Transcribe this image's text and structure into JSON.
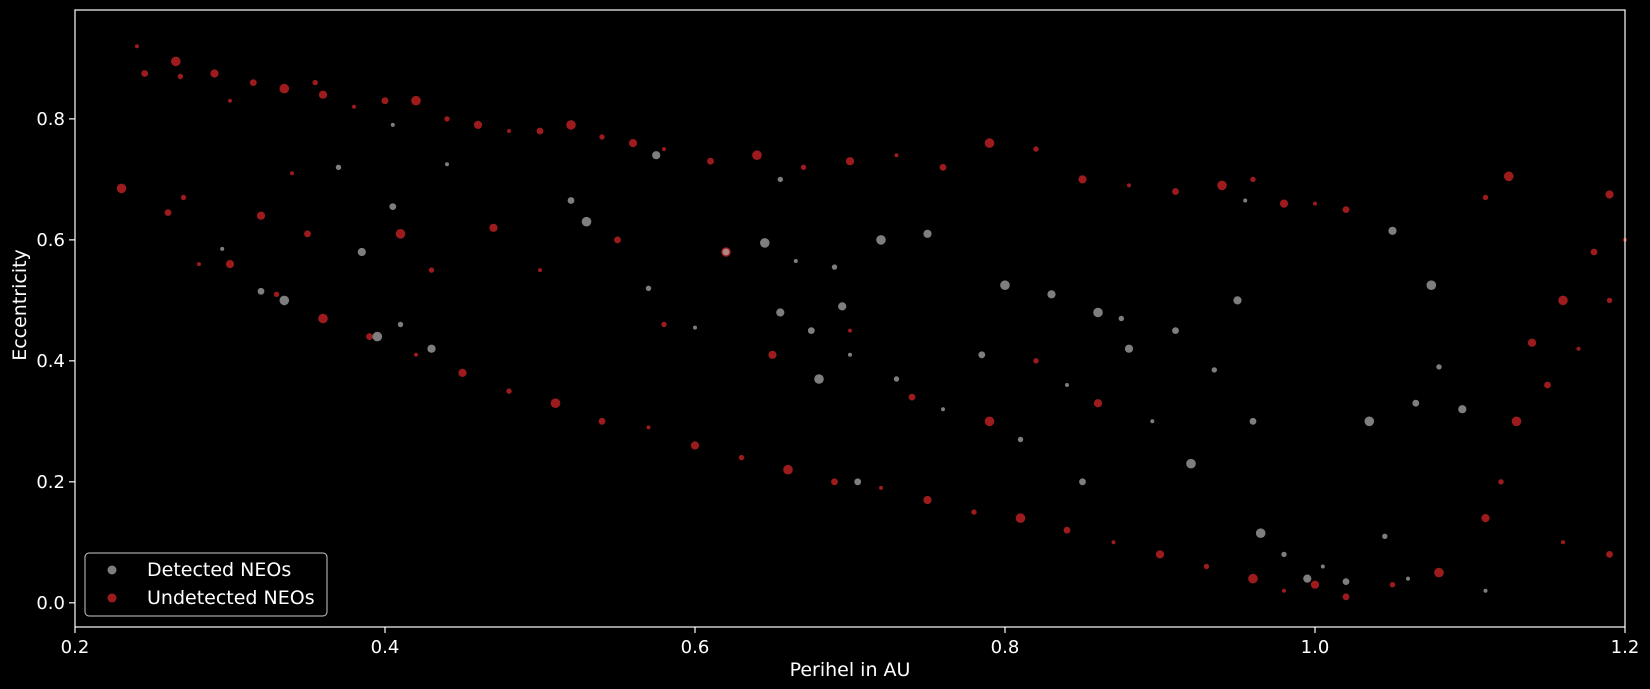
{
  "chart_data": {
    "type": "scatter",
    "title": "",
    "xlabel": "Perihel in AU",
    "ylabel": "Eccentricity",
    "xlim": [
      0.2,
      1.2
    ],
    "ylim": [
      -0.04,
      0.98
    ],
    "xticks": [
      0.2,
      0.4,
      0.6,
      0.8,
      1.0,
      1.2
    ],
    "xtick_labels": [
      "0.2",
      "0.4",
      "0.6",
      "0.8",
      "1.0",
      "1.2"
    ],
    "yticks": [
      0.0,
      0.2,
      0.4,
      0.6,
      0.8
    ],
    "ytick_labels": [
      "0.0",
      "0.2",
      "0.4",
      "0.6",
      "0.8"
    ],
    "grid": false,
    "background": "#000000",
    "legend": {
      "position": "lower-left"
    },
    "series": [
      {
        "name": "Undetected NEOs",
        "color": "#e0262a",
        "points": [
          [
            0.24,
            0.92
          ],
          [
            0.245,
            0.875
          ],
          [
            0.265,
            0.895
          ],
          [
            0.268,
            0.87
          ],
          [
            0.29,
            0.875
          ],
          [
            0.3,
            0.83
          ],
          [
            0.315,
            0.86
          ],
          [
            0.335,
            0.85
          ],
          [
            0.355,
            0.86
          ],
          [
            0.36,
            0.84
          ],
          [
            0.38,
            0.82
          ],
          [
            0.4,
            0.83
          ],
          [
            0.42,
            0.83
          ],
          [
            0.44,
            0.8
          ],
          [
            0.46,
            0.79
          ],
          [
            0.48,
            0.78
          ],
          [
            0.5,
            0.78
          ],
          [
            0.52,
            0.79
          ],
          [
            0.54,
            0.77
          ],
          [
            0.56,
            0.76
          ],
          [
            0.58,
            0.75
          ],
          [
            0.61,
            0.73
          ],
          [
            0.64,
            0.74
          ],
          [
            0.67,
            0.72
          ],
          [
            0.7,
            0.73
          ],
          [
            0.73,
            0.74
          ],
          [
            0.76,
            0.72
          ],
          [
            0.79,
            0.76
          ],
          [
            0.82,
            0.75
          ],
          [
            0.85,
            0.7
          ],
          [
            0.88,
            0.69
          ],
          [
            0.91,
            0.68
          ],
          [
            0.94,
            0.69
          ],
          [
            0.96,
            0.7
          ],
          [
            0.98,
            0.66
          ],
          [
            1.0,
            0.66
          ],
          [
            1.02,
            0.65
          ],
          [
            1.125,
            0.705
          ],
          [
            1.11,
            0.67
          ],
          [
            1.19,
            0.675
          ],
          [
            1.2,
            0.6
          ],
          [
            1.18,
            0.58
          ],
          [
            1.16,
            0.5
          ],
          [
            1.19,
            0.5
          ],
          [
            1.14,
            0.43
          ],
          [
            1.17,
            0.42
          ],
          [
            1.15,
            0.36
          ],
          [
            1.13,
            0.3
          ],
          [
            1.12,
            0.2
          ],
          [
            1.11,
            0.14
          ],
          [
            1.16,
            0.1
          ],
          [
            1.19,
            0.08
          ],
          [
            1.08,
            0.05
          ],
          [
            1.05,
            0.03
          ],
          [
            1.0,
            0.03
          ],
          [
            0.98,
            0.02
          ],
          [
            1.02,
            0.01
          ],
          [
            0.96,
            0.04
          ],
          [
            0.93,
            0.06
          ],
          [
            0.9,
            0.08
          ],
          [
            0.87,
            0.1
          ],
          [
            0.84,
            0.12
          ],
          [
            0.81,
            0.14
          ],
          [
            0.78,
            0.15
          ],
          [
            0.75,
            0.17
          ],
          [
            0.72,
            0.19
          ],
          [
            0.69,
            0.2
          ],
          [
            0.66,
            0.22
          ],
          [
            0.63,
            0.24
          ],
          [
            0.6,
            0.26
          ],
          [
            0.57,
            0.29
          ],
          [
            0.54,
            0.3
          ],
          [
            0.51,
            0.33
          ],
          [
            0.48,
            0.35
          ],
          [
            0.45,
            0.38
          ],
          [
            0.42,
            0.41
          ],
          [
            0.39,
            0.44
          ],
          [
            0.36,
            0.47
          ],
          [
            0.33,
            0.51
          ],
          [
            0.3,
            0.56
          ],
          [
            0.28,
            0.56
          ],
          [
            0.26,
            0.645
          ],
          [
            0.23,
            0.685
          ],
          [
            0.27,
            0.67
          ],
          [
            0.32,
            0.64
          ],
          [
            0.34,
            0.71
          ],
          [
            0.35,
            0.61
          ],
          [
            0.41,
            0.61
          ],
          [
            0.43,
            0.55
          ],
          [
            0.47,
            0.62
          ],
          [
            0.5,
            0.55
          ],
          [
            0.55,
            0.6
          ],
          [
            0.62,
            0.58
          ],
          [
            0.58,
            0.46
          ],
          [
            0.65,
            0.41
          ],
          [
            0.7,
            0.45
          ],
          [
            0.74,
            0.34
          ],
          [
            0.79,
            0.3
          ],
          [
            0.82,
            0.4
          ],
          [
            0.86,
            0.33
          ]
        ]
      },
      {
        "name": "Detected NEOs",
        "color": "#b3b3b3",
        "points": [
          [
            0.295,
            0.585
          ],
          [
            0.32,
            0.515
          ],
          [
            0.335,
            0.5
          ],
          [
            0.37,
            0.72
          ],
          [
            0.385,
            0.58
          ],
          [
            0.405,
            0.79
          ],
          [
            0.405,
            0.655
          ],
          [
            0.395,
            0.44
          ],
          [
            0.41,
            0.46
          ],
          [
            0.43,
            0.42
          ],
          [
            0.44,
            0.725
          ],
          [
            0.52,
            0.665
          ],
          [
            0.53,
            0.63
          ],
          [
            0.57,
            0.52
          ],
          [
            0.575,
            0.74
          ],
          [
            0.6,
            0.455
          ],
          [
            0.62,
            0.58
          ],
          [
            0.645,
            0.595
          ],
          [
            0.655,
            0.7
          ],
          [
            0.655,
            0.48
          ],
          [
            0.665,
            0.565
          ],
          [
            0.675,
            0.45
          ],
          [
            0.68,
            0.37
          ],
          [
            0.69,
            0.555
          ],
          [
            0.695,
            0.49
          ],
          [
            0.7,
            0.41
          ],
          [
            0.705,
            0.2
          ],
          [
            0.72,
            0.6
          ],
          [
            0.73,
            0.37
          ],
          [
            0.75,
            0.61
          ],
          [
            0.76,
            0.32
          ],
          [
            0.785,
            0.41
          ],
          [
            0.8,
            0.525
          ],
          [
            0.81,
            0.27
          ],
          [
            0.83,
            0.51
          ],
          [
            0.84,
            0.36
          ],
          [
            0.85,
            0.2
          ],
          [
            0.86,
            0.48
          ],
          [
            0.875,
            0.47
          ],
          [
            0.88,
            0.42
          ],
          [
            0.895,
            0.3
          ],
          [
            0.91,
            0.45
          ],
          [
            0.92,
            0.23
          ],
          [
            0.935,
            0.385
          ],
          [
            0.95,
            0.5
          ],
          [
            0.955,
            0.665
          ],
          [
            0.96,
            0.3
          ],
          [
            0.965,
            0.115
          ],
          [
            0.98,
            0.08
          ],
          [
            0.995,
            0.04
          ],
          [
            1.005,
            0.06
          ],
          [
            1.02,
            0.035
          ],
          [
            1.035,
            0.3
          ],
          [
            1.045,
            0.11
          ],
          [
            1.05,
            0.615
          ],
          [
            1.06,
            0.04
          ],
          [
            1.065,
            0.33
          ],
          [
            1.075,
            0.525
          ],
          [
            1.08,
            0.39
          ],
          [
            1.095,
            0.32
          ],
          [
            1.11,
            0.02
          ]
        ]
      }
    ]
  },
  "legend_labels": {
    "detected": "Detected NEOs",
    "undetected": "Undetected NEOs"
  }
}
